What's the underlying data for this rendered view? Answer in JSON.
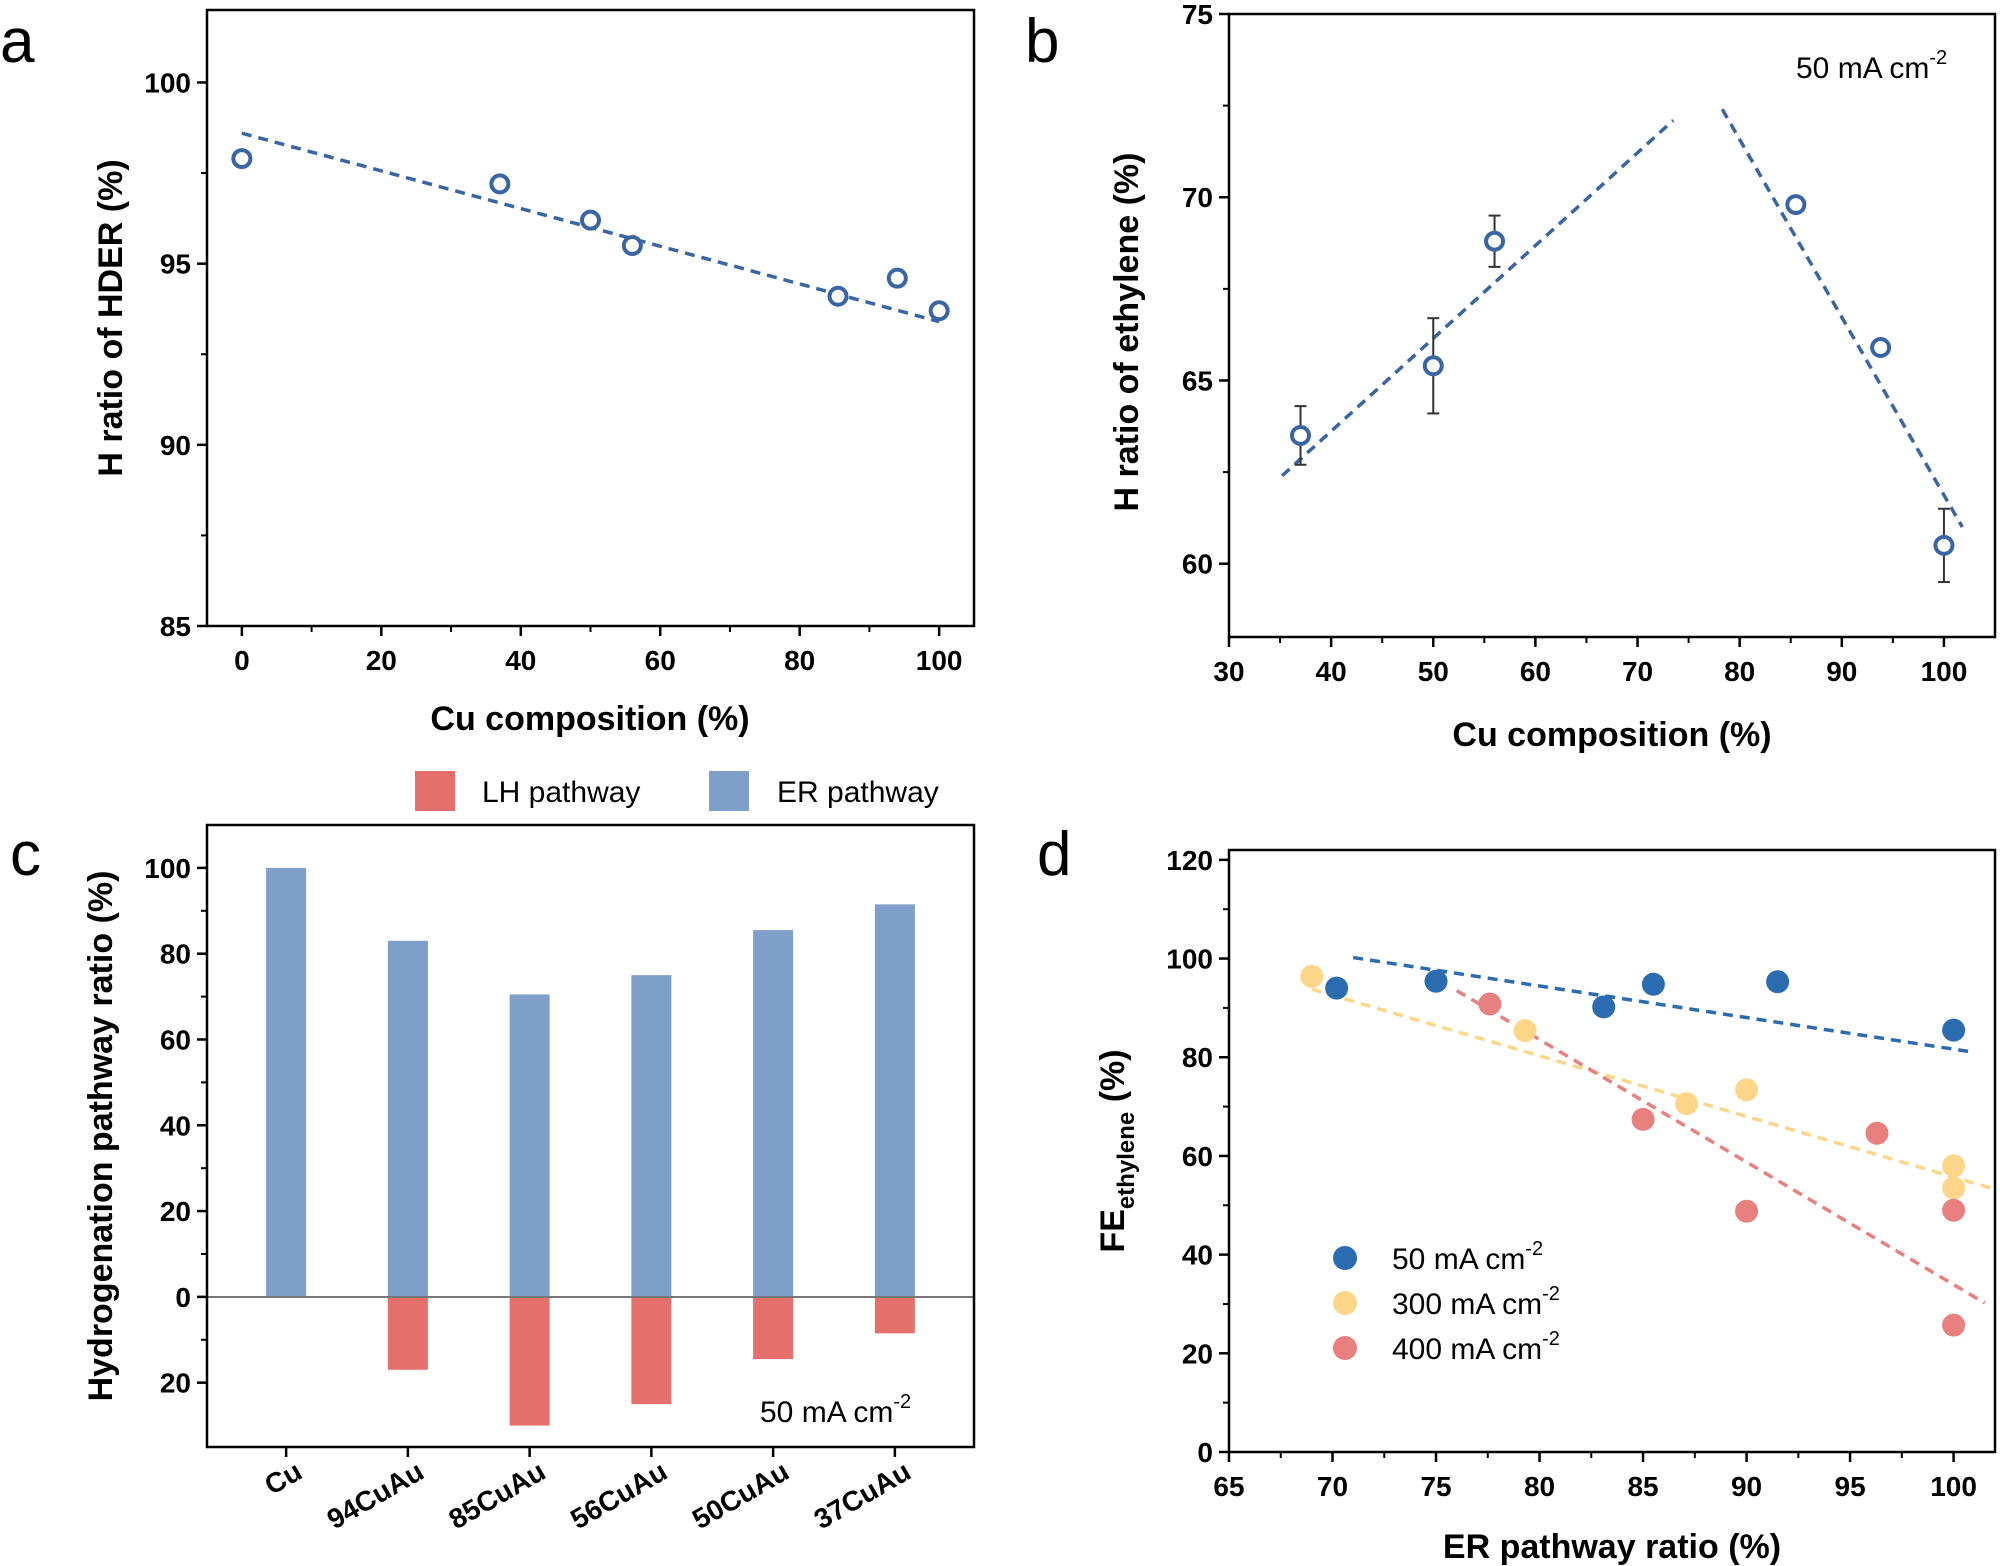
{
  "panels": {
    "a": {
      "letter": "a"
    },
    "b": {
      "letter": "b"
    },
    "c": {
      "letter": "c"
    },
    "d": {
      "letter": "d"
    }
  },
  "chart_data": [
    {
      "id": "a",
      "type": "scatter",
      "xlabel": "Cu composition (%)",
      "ylabel": "H ratio of HDER (%)",
      "xlim": [
        -5,
        105
      ],
      "ylim": [
        85,
        102
      ],
      "xticks": [
        0,
        20,
        40,
        60,
        80,
        100
      ],
      "yticks": [
        85,
        90,
        95,
        100
      ],
      "marker_color": "#3a65a5",
      "fit_color": "#3a65a5",
      "points": [
        {
          "x": 0,
          "y": 97.9
        },
        {
          "x": 37,
          "y": 97.2
        },
        {
          "x": 50,
          "y": 96.2
        },
        {
          "x": 56,
          "y": 95.5
        },
        {
          "x": 85.5,
          "y": 94.1
        },
        {
          "x": 94,
          "y": 94.6
        },
        {
          "x": 100,
          "y": 93.7
        }
      ],
      "fit_lines": [
        {
          "x": [
            0,
            100
          ],
          "y": [
            98.6,
            93.4
          ]
        }
      ]
    },
    {
      "id": "b",
      "type": "scatter",
      "xlabel": "Cu composition (%)",
      "ylabel": "H ratio of ethylene (%)",
      "annotation": "50 mA cm",
      "annotation_sup": "-2",
      "xlim": [
        30,
        105
      ],
      "ylim": [
        58,
        75
      ],
      "xticks": [
        30,
        40,
        50,
        60,
        70,
        80,
        90,
        100
      ],
      "yticks": [
        60,
        65,
        70,
        75
      ],
      "marker_color": "#3a65a5",
      "fit_color": "#3a65a5",
      "points": [
        {
          "x": 37,
          "y": 63.5,
          "err": 0.8
        },
        {
          "x": 50,
          "y": 65.4,
          "err": 1.3
        },
        {
          "x": 56,
          "y": 68.8,
          "err": 0.7
        },
        {
          "x": 85.5,
          "y": 69.8,
          "err": 0.1
        },
        {
          "x": 93.8,
          "y": 65.9,
          "err": 0.1
        },
        {
          "x": 100,
          "y": 60.5,
          "err": 1.0
        }
      ],
      "fit_lines": [
        {
          "x": [
            35.2,
            73.5
          ],
          "y": [
            62.4,
            72.1
          ]
        },
        {
          "x": [
            78.3,
            101.8
          ],
          "y": [
            72.4,
            61.0
          ]
        }
      ]
    },
    {
      "id": "c",
      "type": "bar",
      "ylabel": "Hydrogenation pathway ratio (%)",
      "annotation": "50 mA cm",
      "annotation_sup": "-2",
      "ylim": [
        -35,
        110
      ],
      "yticks": [
        -20,
        0,
        20,
        40,
        60,
        80,
        100
      ],
      "ytick_labels": [
        "20",
        "0",
        "20",
        "40",
        "60",
        "80",
        "100"
      ],
      "categories": [
        "Cu",
        "94CuAu",
        "85CuAu",
        "56CuAu",
        "50CuAu",
        "37CuAu"
      ],
      "series": [
        {
          "name": "LH pathway",
          "color": "#e5706b",
          "values": [
            0,
            -17,
            -30,
            -25,
            -14.5,
            -8.5
          ]
        },
        {
          "name": "ER pathway",
          "color": "#7f9fcb",
          "values": [
            100,
            83,
            70.5,
            75,
            85.5,
            91.5
          ]
        }
      ]
    },
    {
      "id": "d",
      "type": "scatter",
      "xlabel": "ER pathway ratio (%)",
      "ylabel_main": "FE",
      "ylabel_sub": "ethylene",
      "ylabel_tail": " (%)",
      "xlim": [
        65,
        102
      ],
      "ylim": [
        0,
        122
      ],
      "xticks": [
        65,
        70,
        75,
        80,
        85,
        90,
        95,
        100
      ],
      "yticks": [
        0,
        20,
        40,
        60,
        80,
        100,
        120
      ],
      "series": [
        {
          "name": "50 mA cm",
          "name_sup": "-2",
          "color": "#2b6cb0",
          "points": [
            {
              "x": 70.2,
              "y": 94
            },
            {
              "x": 75,
              "y": 95.4
            },
            {
              "x": 83.1,
              "y": 90.2
            },
            {
              "x": 85.5,
              "y": 94.8
            },
            {
              "x": 91.5,
              "y": 95.3
            },
            {
              "x": 100,
              "y": 85.5
            }
          ],
          "fit": {
            "x": [
              71,
              101
            ],
            "y": [
              100.2,
              81
            ]
          }
        },
        {
          "name": "300 mA cm",
          "name_sup": "-2",
          "color": "#fdd68a",
          "points": [
            {
              "x": 69,
              "y": 96.4
            },
            {
              "x": 79.3,
              "y": 85.4
            },
            {
              "x": 87.1,
              "y": 70.6
            },
            {
              "x": 90,
              "y": 73.4
            },
            {
              "x": 100,
              "y": 58
            },
            {
              "x": 100,
              "y": 53.5
            }
          ],
          "fit": {
            "x": [
              69,
              101.8
            ],
            "y": [
              93.8,
              53.5
            ]
          }
        },
        {
          "name": "400 mA cm",
          "name_sup": "-2",
          "color": "#e98080",
          "points": [
            {
              "x": 77.6,
              "y": 90.8
            },
            {
              "x": 85,
              "y": 67.4
            },
            {
              "x": 90,
              "y": 48.8
            },
            {
              "x": 96.3,
              "y": 64.6
            },
            {
              "x": 100,
              "y": 49
            },
            {
              "x": 100,
              "y": 25.7
            }
          ],
          "fit": {
            "x": [
              76,
              101.5
            ],
            "y": [
              93.5,
              30.2
            ]
          }
        }
      ]
    }
  ]
}
